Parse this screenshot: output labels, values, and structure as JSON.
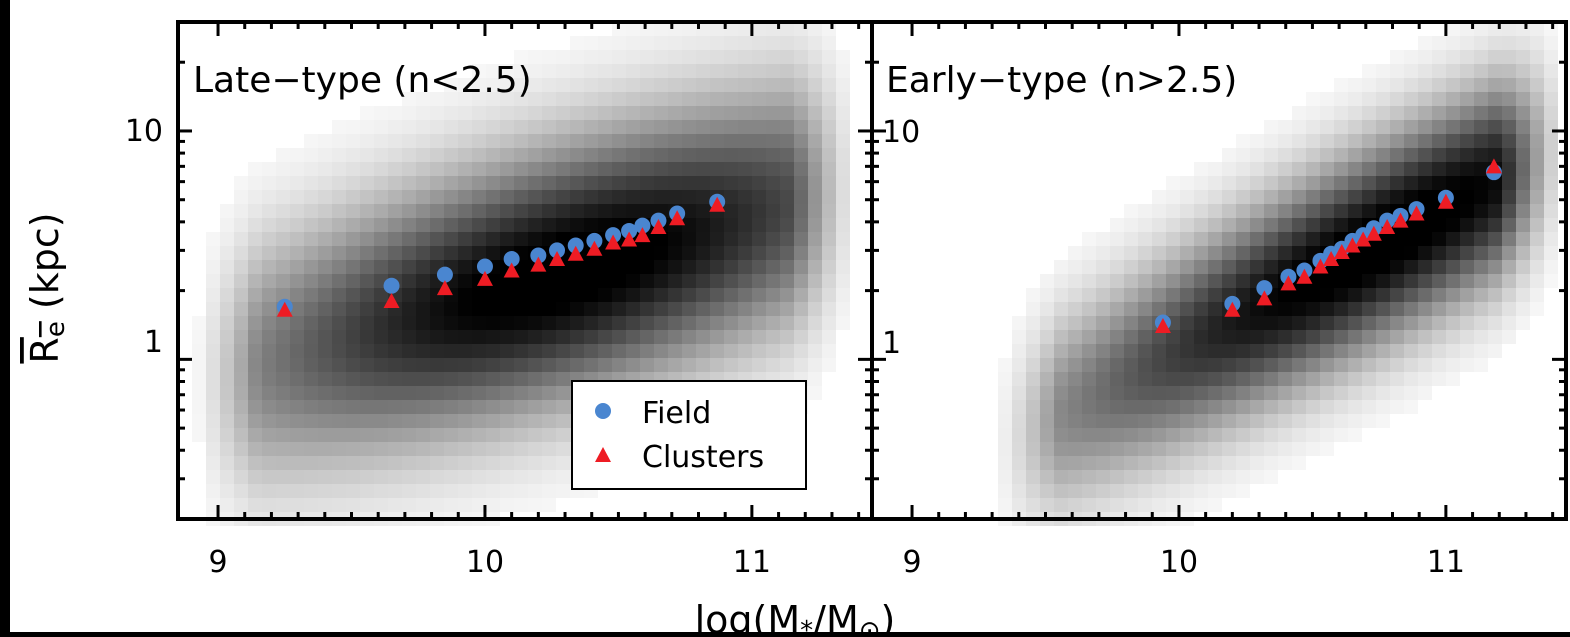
{
  "chart_data": {
    "type": "scatter",
    "xlabel": "log(M*/M⊙)",
    "ylabel": "Re (kpc)",
    "y_scale": "log",
    "ylim": [
      0.2,
      30
    ],
    "yticks": [
      {
        "value": 10,
        "label": "10"
      },
      {
        "value": 1,
        "label": "1"
      }
    ],
    "xticks": [
      9,
      10,
      11
    ],
    "legend_position": "bottom-right",
    "panels": [
      {
        "title": "Late−type (n<2.5)",
        "xlim": [
          8.85,
          11.45
        ],
        "xtick_labels": [
          "9",
          "10",
          "11"
        ],
        "density": {
          "center_x": 10.3,
          "center_y": 2.4,
          "slope": 0.35,
          "width_log": 0.38,
          "extent_x": [
            8.9,
            11.4
          ]
        },
        "series": [
          {
            "name": "Field",
            "marker": "circle",
            "color": "#4a86d0",
            "x": [
              9.25,
              9.65,
              9.85,
              10.0,
              10.1,
              10.2,
              10.27,
              10.34,
              10.41,
              10.48,
              10.54,
              10.59,
              10.65,
              10.72,
              10.87
            ],
            "y": [
              1.7,
              2.1,
              2.35,
              2.55,
              2.75,
              2.85,
              3.0,
              3.15,
              3.3,
              3.5,
              3.65,
              3.85,
              4.05,
              4.35,
              4.9
            ]
          },
          {
            "name": "Clusters",
            "marker": "triangle",
            "color": "#ee1c24",
            "x": [
              9.25,
              9.65,
              9.85,
              10.0,
              10.1,
              10.2,
              10.27,
              10.34,
              10.41,
              10.48,
              10.54,
              10.59,
              10.65,
              10.72,
              10.87
            ],
            "y": [
              1.65,
              1.8,
              2.05,
              2.25,
              2.45,
              2.6,
              2.75,
              2.9,
              3.05,
              3.25,
              3.35,
              3.5,
              3.8,
              4.15,
              4.75
            ]
          }
        ]
      },
      {
        "title": "Early−type (n>2.5)",
        "xlim": [
          8.85,
          11.45
        ],
        "xtick_labels": [
          "9",
          "10",
          "11"
        ],
        "density": {
          "center_x": 10.75,
          "center_y": 3.2,
          "slope": 0.62,
          "width_log": 0.3,
          "extent_x": [
            9.3,
            11.45
          ]
        },
        "series": [
          {
            "name": "Field",
            "marker": "circle",
            "color": "#4a86d0",
            "x": [
              9.94,
              10.2,
              10.32,
              10.41,
              10.47,
              10.53,
              10.57,
              10.61,
              10.65,
              10.69,
              10.73,
              10.78,
              10.83,
              10.89,
              11.0,
              11.18
            ],
            "y": [
              1.45,
              1.75,
              2.05,
              2.3,
              2.45,
              2.7,
              2.9,
              3.05,
              3.3,
              3.5,
              3.75,
              4.05,
              4.25,
              4.55,
              5.1,
              6.6
            ]
          },
          {
            "name": "Clusters",
            "marker": "triangle",
            "color": "#ee1c24",
            "x": [
              9.94,
              10.2,
              10.32,
              10.41,
              10.47,
              10.53,
              10.57,
              10.61,
              10.65,
              10.69,
              10.73,
              10.78,
              10.83,
              10.89,
              11.0,
              11.18
            ],
            "y": [
              1.4,
              1.65,
              1.85,
              2.15,
              2.3,
              2.55,
              2.75,
              2.95,
              3.15,
              3.35,
              3.55,
              3.8,
              4.05,
              4.35,
              4.9,
              7.0
            ]
          }
        ]
      }
    ],
    "legend": [
      {
        "label": "Field",
        "marker": "circle",
        "color": "#4a86d0"
      },
      {
        "label": "Clusters",
        "marker": "triangle",
        "color": "#ee1c24"
      }
    ]
  }
}
